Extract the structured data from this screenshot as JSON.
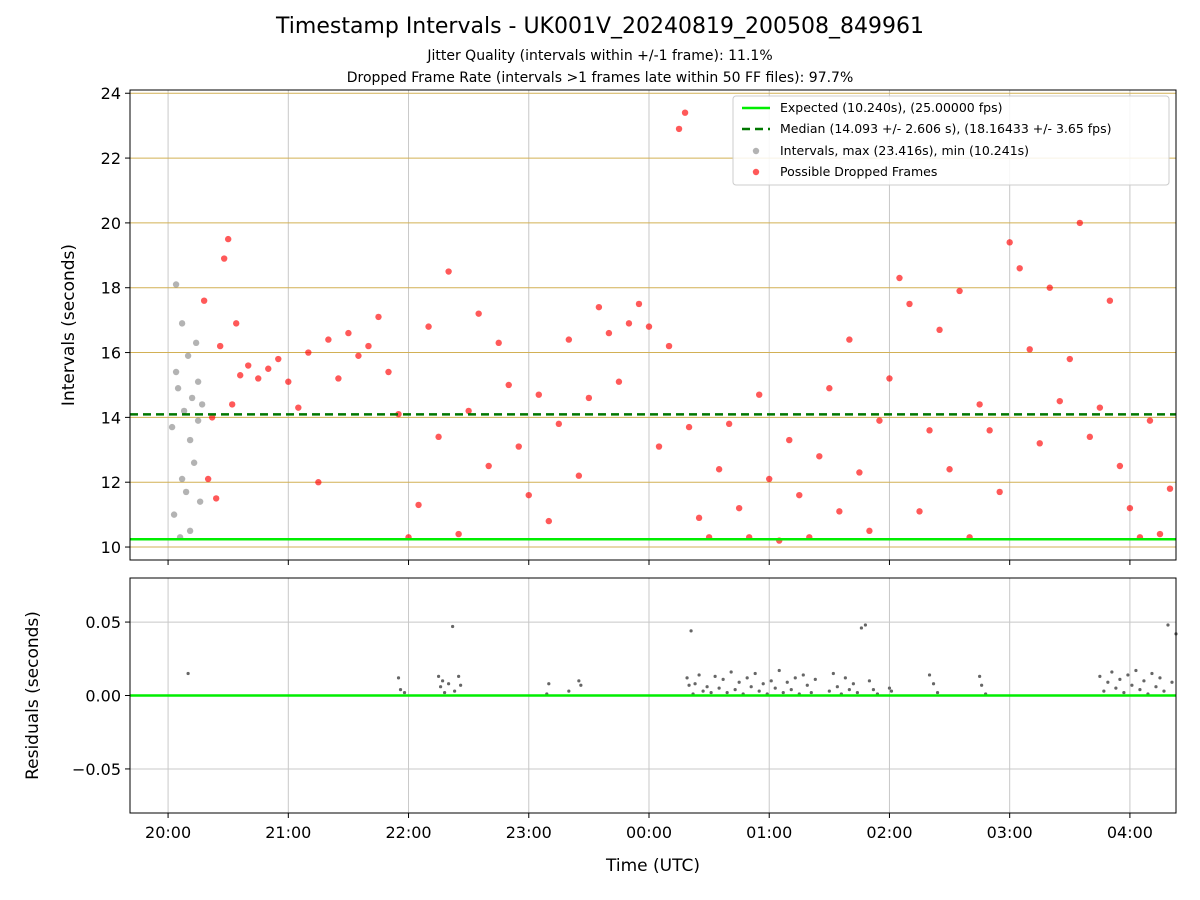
{
  "title": "Timestamp Intervals - UK001V_20240819_200508_849961",
  "subtitle_jitter": "Jitter Quality (intervals within +/-1 frame): 11.1%",
  "subtitle_dropped": "Dropped Frame Rate (intervals >1 frames late within 50 FF files): 97.7%",
  "colors": {
    "expected": "#00ee00",
    "median": "#007700",
    "intervals": "#808080",
    "dropped": "#ff0000",
    "hgrid": "#d2b055",
    "grid": "#c8c8c8"
  },
  "chart_data": [
    {
      "type": "scatter",
      "xlabel": "",
      "ylabel": "Intervals (seconds)",
      "ylim": [
        9.6,
        24.1
      ],
      "xlim": [
        "19:41",
        "04:23"
      ],
      "yticks": [
        "10",
        "12",
        "14",
        "16",
        "18",
        "20",
        "22",
        "24"
      ],
      "grid": true,
      "legend_position": "top-right",
      "legend": [
        "Expected (10.240s), (25.00000 fps)",
        "Median (14.093 +/- 2.606 s), (18.16433 +/- 3.65 fps)",
        "Intervals, max (23.416s), min (10.241s)",
        "Possible Dropped Frames"
      ],
      "expected": 10.24,
      "median": 14.093,
      "series": [
        {
          "name": "Intervals, max (23.416s), min (10.241s)",
          "x": [
            "20:02",
            "20:03",
            "20:04",
            "20:04",
            "20:05",
            "20:06",
            "20:07",
            "20:07",
            "20:08",
            "20:09",
            "20:10",
            "20:11",
            "20:11",
            "20:12",
            "20:13",
            "20:14",
            "20:15",
            "20:15",
            "20:16",
            "20:17"
          ],
          "y": [
            13.7,
            11.0,
            15.4,
            18.1,
            14.9,
            10.3,
            12.1,
            16.9,
            14.2,
            11.7,
            15.9,
            13.3,
            10.5,
            14.6,
            12.6,
            16.3,
            13.9,
            15.1,
            11.4,
            14.4
          ]
        },
        {
          "name": "Possible Dropped Frames",
          "x": [
            "20:18",
            "20:20",
            "20:22",
            "20:24",
            "20:26",
            "20:28",
            "20:30",
            "20:32",
            "20:34",
            "20:36",
            "20:40",
            "20:45",
            "20:50",
            "20:55",
            "21:00",
            "21:05",
            "21:10",
            "21:15",
            "21:20",
            "21:25",
            "21:30",
            "21:35",
            "21:40",
            "21:45",
            "21:50",
            "21:55",
            "22:00",
            "22:05",
            "22:10",
            "22:15",
            "22:20",
            "22:25",
            "22:30",
            "22:35",
            "22:40",
            "22:45",
            "22:50",
            "22:55",
            "23:00",
            "23:05",
            "23:10",
            "23:15",
            "23:20",
            "23:25",
            "23:30",
            "23:35",
            "23:40",
            "23:45",
            "23:50",
            "23:55",
            "00:00",
            "00:05",
            "00:10",
            "00:15",
            "00:18",
            "00:20",
            "00:25",
            "00:30",
            "00:35",
            "00:40",
            "00:45",
            "00:50",
            "00:55",
            "01:00",
            "01:05",
            "01:10",
            "01:15",
            "01:20",
            "01:25",
            "01:30",
            "01:35",
            "01:40",
            "01:45",
            "01:50",
            "01:55",
            "02:00",
            "02:05",
            "02:10",
            "02:15",
            "02:20",
            "02:25",
            "02:30",
            "02:35",
            "02:40",
            "02:45",
            "02:50",
            "02:55",
            "03:00",
            "03:05",
            "03:10",
            "03:15",
            "03:20",
            "03:25",
            "03:30",
            "03:35",
            "03:40",
            "03:45",
            "03:50",
            "03:55",
            "04:00",
            "04:05",
            "04:10",
            "04:15",
            "04:20"
          ],
          "y": [
            17.6,
            12.1,
            14.0,
            11.5,
            16.2,
            18.9,
            19.5,
            14.4,
            16.9,
            15.3,
            15.6,
            15.2,
            15.5,
            15.8,
            15.1,
            14.3,
            16.0,
            12.0,
            16.4,
            15.2,
            16.6,
            15.9,
            16.2,
            17.1,
            15.4,
            14.1,
            10.3,
            11.3,
            16.8,
            13.4,
            18.5,
            10.4,
            14.2,
            17.2,
            12.5,
            16.3,
            15.0,
            13.1,
            11.6,
            14.7,
            10.8,
            13.8,
            16.4,
            12.2,
            14.6,
            17.4,
            16.6,
            15.1,
            16.9,
            17.5,
            16.8,
            13.1,
            16.2,
            22.9,
            23.4,
            13.7,
            10.9,
            10.3,
            12.4,
            13.8,
            11.2,
            10.3,
            14.7,
            12.1,
            10.2,
            13.3,
            11.6,
            10.3,
            12.8,
            14.9,
            11.1,
            16.4,
            12.3,
            10.5,
            13.9,
            15.2,
            18.3,
            17.5,
            11.1,
            13.6,
            16.7,
            12.4,
            17.9,
            10.3,
            14.4,
            13.6,
            11.7,
            19.4,
            18.6,
            16.1,
            13.2,
            18.0,
            14.5,
            15.8,
            20.0,
            13.4,
            14.3,
            17.6,
            12.5,
            11.2,
            10.3,
            13.9,
            10.4,
            11.8
          ]
        }
      ]
    },
    {
      "type": "scatter",
      "xlabel": "Time (UTC)",
      "ylabel": "Residuals (seconds)",
      "ylim": [
        -0.08,
        0.08
      ],
      "yticks": [
        "0.05",
        "0.00",
        "−0.05"
      ],
      "xticks": [
        "20:00",
        "21:00",
        "22:00",
        "23:00",
        "00:00",
        "01:00",
        "02:00",
        "03:00",
        "04:00"
      ],
      "grid": true,
      "series": [
        {
          "x": [
            "20:10",
            "21:55",
            "21:56",
            "21:58",
            "22:15",
            "22:16",
            "22:17",
            "22:18",
            "22:20",
            "22:22",
            "22:23",
            "22:25",
            "22:26",
            "23:09",
            "23:10",
            "23:20",
            "23:25",
            "23:26",
            "00:19",
            "00:20",
            "00:21",
            "00:22",
            "00:23",
            "00:25",
            "00:27",
            "00:29",
            "00:31",
            "00:33",
            "00:35",
            "00:37",
            "00:39",
            "00:41",
            "00:43",
            "00:45",
            "00:47",
            "00:49",
            "00:51",
            "00:53",
            "00:55",
            "00:57",
            "00:59",
            "01:01",
            "01:03",
            "01:05",
            "01:07",
            "01:09",
            "01:11",
            "01:13",
            "01:15",
            "01:17",
            "01:19",
            "01:21",
            "01:23",
            "01:30",
            "01:32",
            "01:34",
            "01:36",
            "01:38",
            "01:40",
            "01:42",
            "01:44",
            "01:46",
            "01:48",
            "01:50",
            "01:52",
            "01:54",
            "02:00",
            "02:01",
            "02:20",
            "02:22",
            "02:24",
            "02:45",
            "02:46",
            "02:48",
            "03:45",
            "03:47",
            "03:49",
            "03:51",
            "03:53",
            "03:55",
            "03:57",
            "03:59",
            "04:01",
            "04:03",
            "04:05",
            "04:07",
            "04:09",
            "04:11",
            "04:13",
            "04:15",
            "04:17",
            "04:19",
            "04:21",
            "04:23"
          ],
          "y": [
            0.015,
            0.012,
            0.004,
            0.002,
            0.013,
            0.006,
            0.01,
            0.002,
            0.008,
            0.047,
            0.003,
            0.013,
            0.007,
            0.001,
            0.008,
            0.003,
            0.01,
            0.007,
            0.012,
            0.007,
            0.044,
            0.001,
            0.008,
            0.014,
            0.003,
            0.006,
            0.002,
            0.013,
            0.005,
            0.011,
            0.002,
            0.016,
            0.004,
            0.009,
            0.001,
            0.012,
            0.006,
            0.015,
            0.003,
            0.008,
            0.001,
            0.01,
            0.005,
            0.017,
            0.002,
            0.009,
            0.004,
            0.012,
            0.001,
            0.014,
            0.007,
            0.002,
            0.011,
            0.003,
            0.015,
            0.006,
            0.001,
            0.012,
            0.004,
            0.008,
            0.002,
            0.046,
            0.048,
            0.01,
            0.004,
            0.001,
            0.005,
            0.003,
            0.014,
            0.008,
            0.002,
            0.013,
            0.007,
            0.001,
            0.013,
            0.003,
            0.009,
            0.016,
            0.005,
            0.011,
            0.002,
            0.014,
            0.007,
            0.017,
            0.004,
            0.01,
            0.001,
            0.015,
            0.006,
            0.012,
            0.003,
            0.048,
            0.009,
            0.042
          ]
        }
      ]
    }
  ]
}
